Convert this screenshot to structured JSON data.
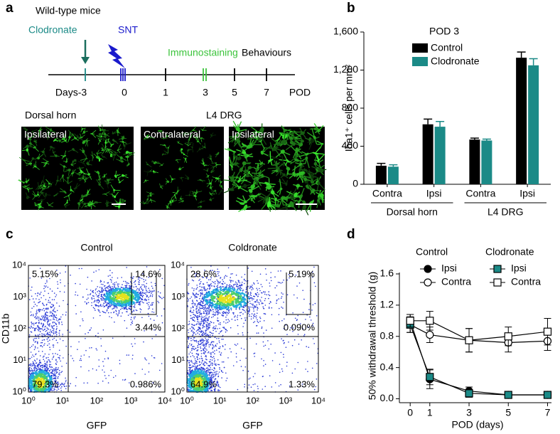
{
  "panel_labels": [
    "a",
    "b",
    "c",
    "d"
  ],
  "panel_a": {
    "title": "Wild-type mice",
    "events": {
      "clodronate": "Clodronate",
      "snt": "SNT",
      "immunostaining": "Immunostaining",
      "behaviours": "Behaviours"
    },
    "timeline": {
      "labels": [
        "Days-3",
        "0",
        "1",
        "3",
        "5",
        "7"
      ],
      "unit": "POD"
    },
    "images": {
      "dorsal_horn": "Dorsal horn",
      "l4_drg": "L4 DRG",
      "panels": [
        "Ipsilateral",
        "Contralateral",
        "Ipsilateral"
      ]
    }
  },
  "chart_data": [
    {
      "type": "bar",
      "title": "POD 3",
      "ylabel": "Iba1⁺ cells per mm²",
      "categories": [
        "Contra",
        "Ipsi",
        "Contra",
        "Ipsi"
      ],
      "category_groups": [
        "Dorsal horn",
        "L4 DRG"
      ],
      "series": [
        {
          "name": "Control",
          "color": "#000000",
          "values": [
            195,
            630,
            470,
            1330
          ],
          "errors": [
            25,
            55,
            15,
            60
          ]
        },
        {
          "name": "Clodronate",
          "color": "#1b8a87",
          "values": [
            185,
            605,
            460,
            1250
          ],
          "errors": [
            20,
            55,
            15,
            70
          ]
        }
      ],
      "ylim": [
        0,
        1600
      ],
      "yticks": [
        0,
        400,
        800,
        {
          "value": 1200,
          "label": "1,200"
        },
        {
          "value": 1600,
          "label": "1,600"
        }
      ]
    },
    {
      "type": "line",
      "xlabel": "POD (days)",
      "ylabel": "50% withdrawal threshold (g)",
      "x": [
        0,
        1,
        3,
        5,
        7
      ],
      "groups": [
        {
          "name": "Control",
          "series": [
            {
              "name": "Ipsi",
              "marker": "circle",
              "color": "#000000",
              "fill": "#000000",
              "values": [
                1.0,
                0.25,
                0.1,
                0.05,
                0.05
              ],
              "errors": [
                0.08,
                0.12,
                0.05,
                0.02,
                0.02
              ]
            },
            {
              "name": "Contra",
              "marker": "circle",
              "color": "#000000",
              "fill": "#ffffff",
              "values": [
                0.95,
                0.82,
                0.75,
                0.72,
                0.74
              ],
              "errors": [
                0.1,
                0.1,
                0.15,
                0.12,
                0.12
              ]
            }
          ]
        },
        {
          "name": "Clodronate",
          "series": [
            {
              "name": "Ipsi",
              "marker": "square",
              "color": "#000000",
              "fill": "#1b8a87",
              "values": [
                0.95,
                0.28,
                0.07,
                0.05,
                0.05
              ],
              "errors": [
                0.1,
                0.1,
                0.05,
                0.02,
                0.02
              ]
            },
            {
              "name": "Contra",
              "marker": "square",
              "color": "#000000",
              "fill": "#ffffff",
              "values": [
                1.0,
                1.0,
                0.75,
                0.8,
                0.86
              ],
              "errors": [
                0.08,
                0.12,
                0.15,
                0.12,
                0.17
              ]
            }
          ]
        }
      ],
      "xlim": [
        -0.55,
        7.2
      ],
      "xticks": [
        0,
        1,
        3,
        5,
        7
      ],
      "ylim": [
        -0.05,
        1.6
      ],
      "yticks": [
        {
          "value": 0,
          "label": "0.0"
        },
        0.4,
        0.8,
        1.2,
        1.6
      ]
    }
  ],
  "panel_c": {
    "xlabel": "GFP",
    "ylabel": "CD11b",
    "ticks": [
      "10⁰",
      "10¹",
      "10²",
      "10³",
      "10⁴"
    ],
    "plots": [
      {
        "title": "Control",
        "quadrants": {
          "upper_left": "5.15%",
          "upper_right": "14.6%",
          "gate": "3.44%",
          "lower_left": "79.3%",
          "lower_right": "0.986%"
        }
      },
      {
        "title": "Coldronate",
        "quadrants": {
          "upper_left": "28.6%",
          "upper_right": "5.19%",
          "gate": "0.090%",
          "lower_left": "64.9%",
          "lower_right": "1.33%"
        }
      }
    ]
  }
}
